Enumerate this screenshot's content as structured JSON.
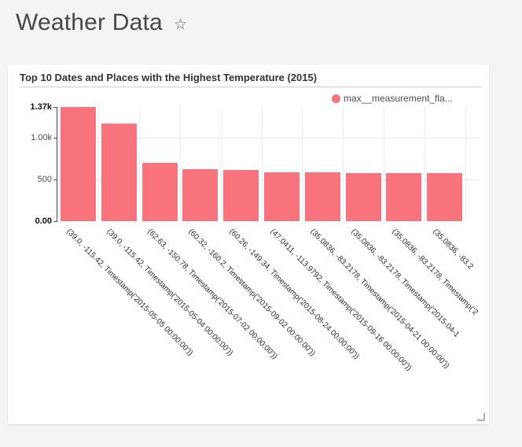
{
  "page": {
    "title": "Weather Data",
    "favorite_icon": "star-outline",
    "background_color": "#f4f4f4"
  },
  "card": {
    "title": "Top 10 Dates and Places with the Highest Temperature (2015)",
    "legend": {
      "label": "max__measurement_fla...",
      "color": "#f8737b"
    }
  },
  "chart_data": {
    "type": "bar",
    "title": "Top 10 Dates and Places with the Highest Temperature (2015)",
    "legend_entries": [
      "max__measurement_fla..."
    ],
    "legend_position": "top-right",
    "bar_color": "#f8737b",
    "grid": true,
    "xlabel": "",
    "ylabel": "",
    "ylim": [
      0,
      1370
    ],
    "yticks": [
      {
        "label": "0.00",
        "value": 0,
        "bold": true
      },
      {
        "label": "500",
        "value": 500,
        "bold": false
      },
      {
        "label": "1.00k",
        "value": 1000,
        "bold": false
      },
      {
        "label": "1.37k",
        "value": 1370,
        "bold": true
      }
    ],
    "categories": [
      "(39.0, -115.42, Timestamp('2015-05-05 00:00:00'))",
      "(39.0, -115.42, Timestamp('2015-05-04 00:00:00'))",
      "(62.63, -150.78, Timestamp('2015-07-02 00:00:00'))",
      "(60.32, -160.2, Timestamp('2015-09-02 00:00:00'))",
      "(60.26, -149.34, Timestamp('2015-08-24 00:00:00'))",
      "(47.0411, -113.9792, Timestamp('2015-09-16 00:00:00'))",
      "(35.0836, -83.2178, Timestamp('2015-04-21 00:00:00'))",
      "(35.0836, -83.2178, Timestamp('2015-04-1",
      "(35.0836, -83.2178, Timestamp('2",
      "(35.0836, -83.2"
    ],
    "series": [
      {
        "name": "max__measurement_fla...",
        "values": [
          1370,
          1175,
          700,
          620,
          610,
          585,
          583,
          581,
          580,
          579
        ]
      }
    ]
  }
}
